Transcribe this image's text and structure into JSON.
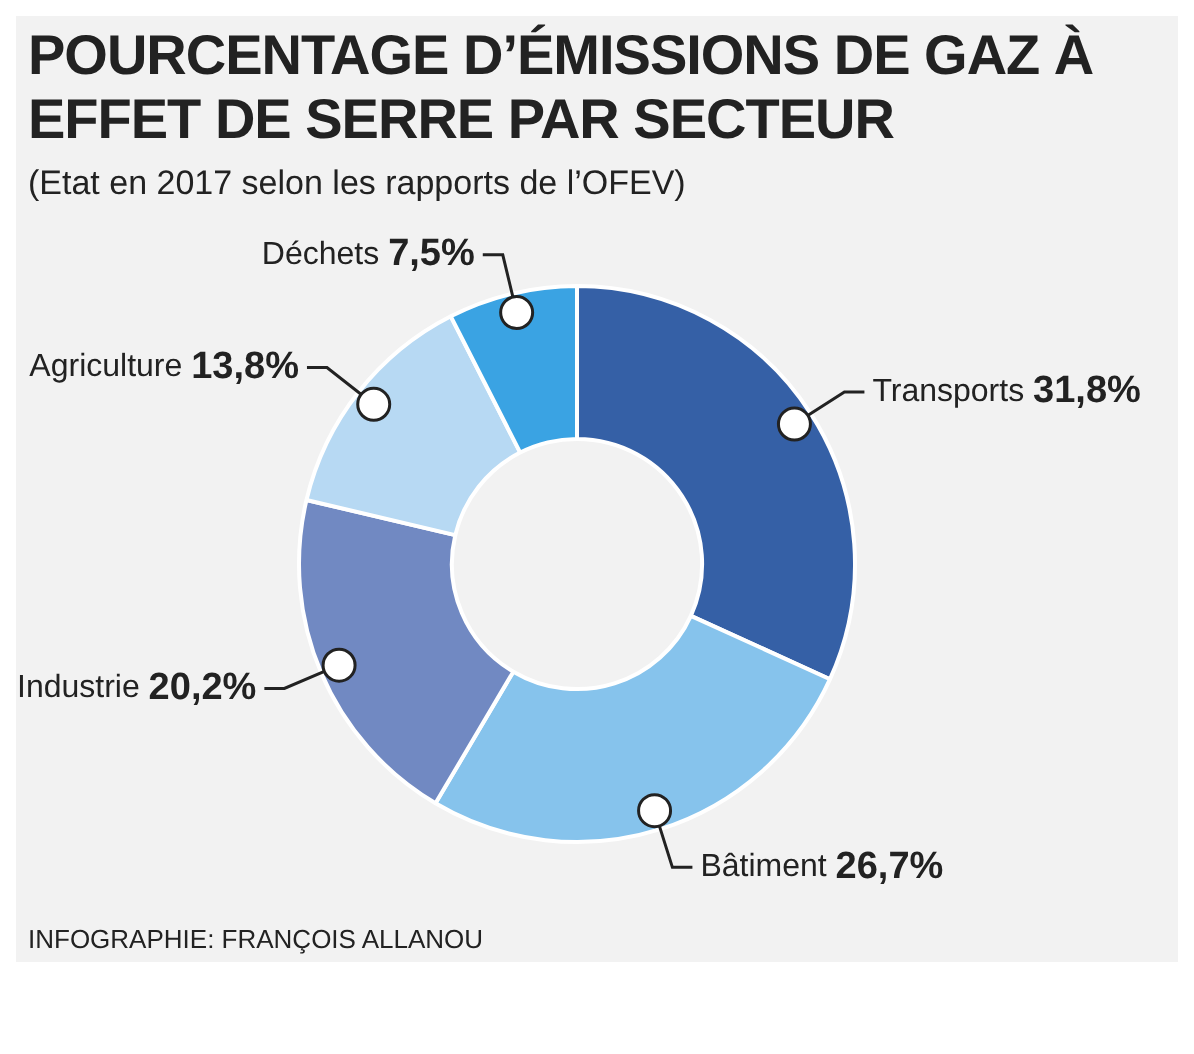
{
  "chart_data": {
    "type": "donut",
    "title": "POURCENTAGE D’ÉMISSIONS DE GAZ À EFFET DE SERRE PAR SECTEUR",
    "subtitle": "(Etat en 2017 selon les rapports de l’OFEV)",
    "categories": [
      "Transports",
      "Bâtiment",
      "Industrie",
      "Agriculture",
      "Déchets"
    ],
    "values": [
      31.8,
      26.7,
      20.2,
      13.8,
      7.5
    ],
    "colors": [
      "#3560a6",
      "#86c3ec",
      "#7189c2",
      "#b7d9f3",
      "#3aa3e3"
    ],
    "value_labels": [
      "31,8%",
      "26,7%",
      "20,2%",
      "13,8%",
      "7,5%"
    ],
    "annotations": [
      "INFOGRAPHIE: FRANÇOIS ALLANOU"
    ],
    "legend": false
  }
}
